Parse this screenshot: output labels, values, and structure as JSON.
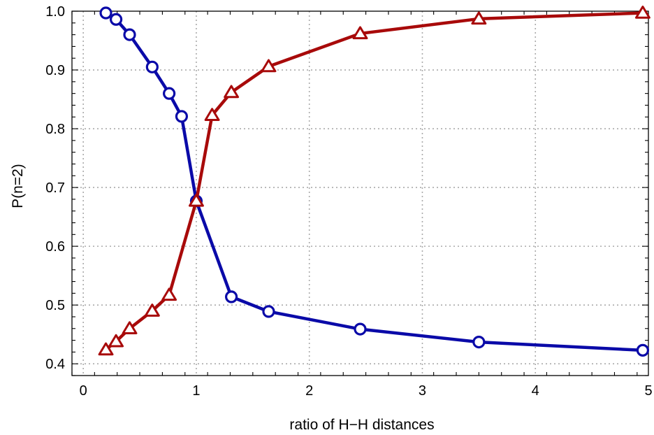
{
  "chart_data": {
    "type": "line",
    "title": "",
    "xlabel": "ratio of H−H distances",
    "ylabel": "P(n=2)",
    "xlim": [
      -0.1,
      5.0
    ],
    "ylim": [
      0.38,
      1.0
    ],
    "x_ticks": [
      0,
      1,
      2,
      3,
      4,
      5
    ],
    "x_tick_labels": [
      "0",
      "1",
      "2",
      "3",
      "4",
      "5"
    ],
    "y_ticks": [
      0.4,
      0.5,
      0.6,
      0.7,
      0.8,
      0.9,
      1.0
    ],
    "y_tick_labels": [
      "0.4",
      "0.5",
      "0.6",
      "0.7",
      "0.8",
      "0.9",
      "1.0"
    ],
    "grid": true,
    "legend": "none",
    "series": [
      {
        "color": "#0a0aa8",
        "marker": "circle",
        "x": [
          0.2,
          0.29,
          0.41,
          0.61,
          0.76,
          0.87,
          1.0,
          1.31,
          1.64,
          2.45,
          3.5,
          4.95
        ],
        "y": [
          0.997,
          0.986,
          0.96,
          0.905,
          0.86,
          0.821,
          0.677,
          0.514,
          0.489,
          0.459,
          0.437,
          0.423
        ]
      },
      {
        "color": "#a80a0a",
        "marker": "triangle",
        "x": [
          0.2,
          0.29,
          0.41,
          0.61,
          0.76,
          1.0,
          1.14,
          1.31,
          1.64,
          2.45,
          3.5,
          4.95
        ],
        "y": [
          0.424,
          0.438,
          0.46,
          0.49,
          0.517,
          0.677,
          0.823,
          0.862,
          0.906,
          0.962,
          0.987,
          0.997
        ]
      }
    ]
  }
}
